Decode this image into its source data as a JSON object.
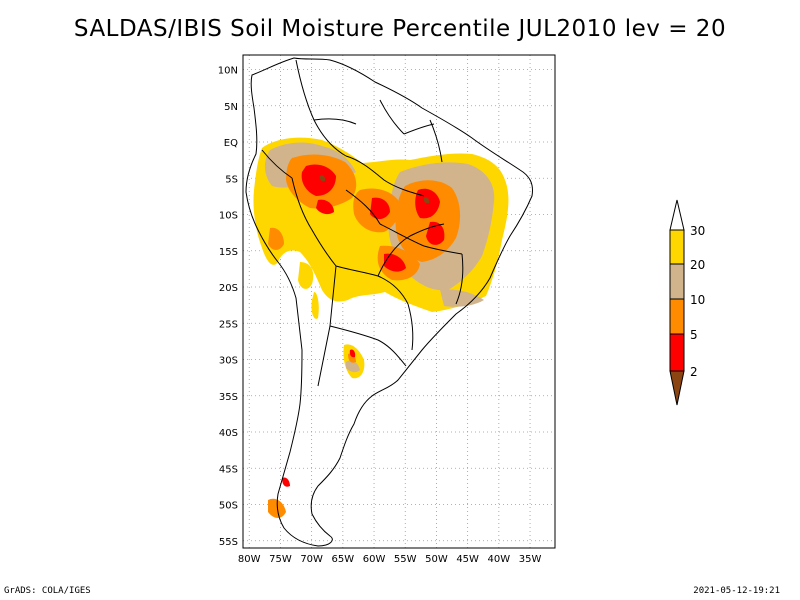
{
  "title": "SALDAS/IBIS Soil Moisture Percentile JUL2010 lev = 20",
  "footer": {
    "left": "GrADS: COLA/IGES",
    "right": "2021-05-12-19:21"
  },
  "map": {
    "projection": "lat-lon",
    "lon_range": [
      -81,
      -31
    ],
    "lat_range": [
      -56,
      12
    ],
    "grid": "dotted",
    "x_ticks": [
      "80W",
      "75W",
      "70W",
      "65W",
      "60W",
      "55W",
      "50W",
      "45W",
      "40W",
      "35W"
    ],
    "y_ticks": [
      "10N",
      "5N",
      "EQ",
      "5S",
      "10S",
      "15S",
      "20S",
      "25S",
      "30S",
      "35S",
      "40S",
      "45S",
      "50S",
      "55S"
    ]
  },
  "colorbar": {
    "labels": [
      "2",
      "5",
      "10",
      "20",
      "30"
    ],
    "colors": {
      "below_2": "#8b4513",
      "2_5": "#ff0000",
      "5_10": "#ff8c00",
      "10_20": "#d2b48c",
      "20_30": "#ffd700",
      "above_30": "#ffffff"
    }
  },
  "colors": {
    "gold": "#ffd700",
    "tan": "#d2b48c",
    "orange": "#ff8c00",
    "red": "#ff0000",
    "brown": "#8b4513"
  }
}
